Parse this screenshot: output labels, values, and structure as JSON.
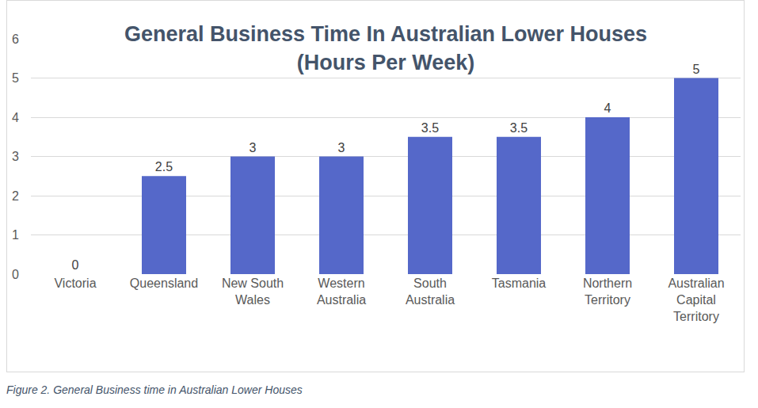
{
  "chart_data": {
    "type": "bar",
    "title": "General Business Time In Australian Lower Houses\n(Hours Per Week)",
    "caption": "Figure 2. General Business time in Australian Lower Houses",
    "categories": [
      "Victoria",
      "Queensland",
      "New South Wales",
      "Western Australia",
      "South Australia",
      "Tasmania",
      "Northern Territory",
      "Australian Capital Territory"
    ],
    "values": [
      0,
      2.5,
      3,
      3,
      3.5,
      3.5,
      4,
      5
    ],
    "color": "#5568c9",
    "ylim": [
      0,
      6
    ],
    "yticks": [
      0,
      1,
      2,
      3,
      4,
      5,
      6
    ],
    "grid": true,
    "data_labels": true
  }
}
